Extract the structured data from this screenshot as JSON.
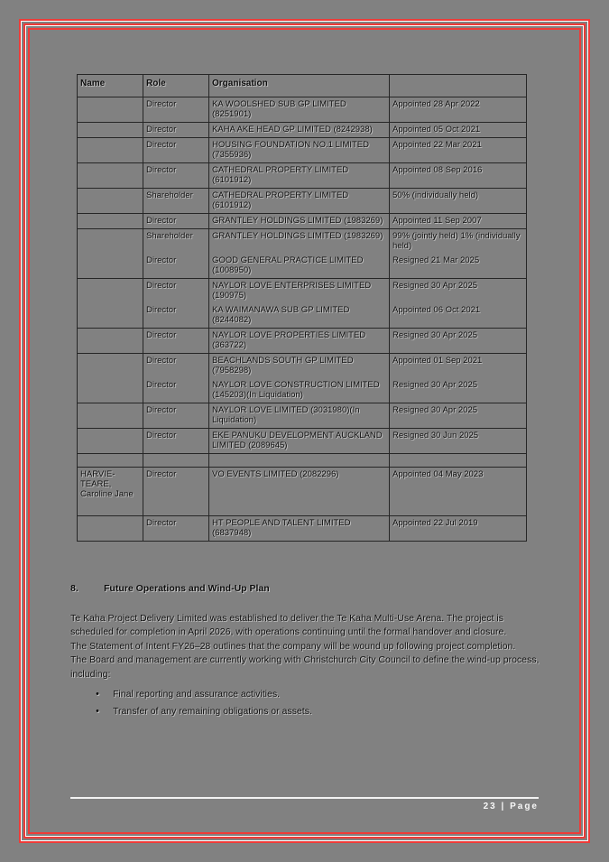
{
  "page": {
    "background_color": "#818181",
    "border_color": "#ee3b38",
    "footer": {
      "page_label": "23 | Page"
    }
  },
  "table": {
    "headers": [
      "Name",
      "Role",
      "Organisation",
      ""
    ],
    "rows": [
      {
        "name": "",
        "role": "Director",
        "organisation": "KA WOOLSHED SUB GP LIMITED (8251901)",
        "status": "Appointed 28 Apr 2022"
      },
      {
        "name": "",
        "role": "Director",
        "organisation": "KAHA AKE HEAD GP LIMITED (8242938)",
        "status": "Appointed 05 Oct 2021"
      },
      {
        "name": "",
        "role": "Director",
        "organisation": "HOUSING FOUNDATION NO.1 LIMITED (7355936)",
        "status": "Appointed 22 Mar 2021"
      },
      {
        "name": "",
        "role": "Director",
        "organisation": "CATHEDRAL PROPERTY LIMITED (6101912)",
        "status": "Appointed 08 Sep 2016"
      },
      {
        "name": "",
        "role": "Shareholder",
        "organisation": "CATHEDRAL PROPERTY LIMITED (6101912)",
        "status": "50% (individually held)"
      },
      {
        "name": "",
        "role": "Director",
        "organisation": "GRANTLEY HOLDINGS LIMITED (1983269)",
        "status": "Appointed 11 Sep 2007"
      },
      {
        "name": "",
        "role": "Shareholder",
        "organisation": "GRANTLEY HOLDINGS LIMITED (1983269)",
        "status": "99% (jointly held) 1% (individually held)"
      },
      {
        "name": "",
        "role": "Director",
        "organisation": "GOOD GENERAL PRACTICE LIMITED (1008950)",
        "status": "Resigned 21 Mar 2025",
        "joined": true
      },
      {
        "name": "",
        "role": "Director",
        "organisation": "NAYLOR LOVE ENTERPRISES LIMITED (190975)",
        "status": "Resigned 30 Apr 2025"
      },
      {
        "name": "",
        "role": "Director",
        "organisation": "KA WAIMANAWA SUB GP LIMITED (8244082)",
        "status": "Appointed 06 Oct 2021",
        "joined": true
      },
      {
        "name": "",
        "role": "Director",
        "organisation": "NAYLOR LOVE PROPERTIES LIMITED (363722)",
        "status": "Resigned 30 Apr 2025"
      },
      {
        "name": "",
        "role": "Director",
        "organisation": "BEACHLANDS SOUTH GP LIMITED (7958298)",
        "status": "Appointed 01 Sep 2021"
      },
      {
        "name": "",
        "role": "Director",
        "organisation": "NAYLOR LOVE CONSTRUCTION LIMITED (145203)(In Liquidation)",
        "status": "Resigned 30 Apr 2025",
        "joined": true
      },
      {
        "name": "",
        "role": "Director",
        "organisation": "NAYLOR LOVE LIMITED (3031980)(In Liquidation)",
        "status": "Resigned 30 Apr 2025"
      },
      {
        "name": "",
        "role": "Director",
        "organisation": "EKE PANUKU DEVELOPMENT AUCKLAND LIMITED (2089645)",
        "status": "Resigned 30 Jun 2025"
      },
      {
        "name": "",
        "role": "",
        "organisation": "",
        "status": "",
        "spacer": true
      },
      {
        "name": "HARVIE-TEARE, Caroline Jane",
        "role": "Director",
        "organisation": "VO EVENTS LIMITED (2082296)",
        "status": "Appointed 04 May 2023",
        "tall": true
      },
      {
        "name": "",
        "role": "Director",
        "organisation": "HT PEOPLE AND TALENT LIMITED (6837948)",
        "status": "Appointed 22 Jul 2019"
      }
    ]
  },
  "section": {
    "number": "8.",
    "title": "Future Operations and Wind-Up Plan",
    "paragraphs": [
      "Te Kaha Project Delivery Limited was established to deliver the Te Kaha Multi-Use Arena. The project is scheduled for completion in April 2026, with operations continuing until the formal handover and closure.",
      "The Statement of Intent FY26–28 outlines that the company will be wound up following project completion.",
      "The Board and management are currently working with Christchurch City Council to define the wind-up process, including:"
    ],
    "bullets": [
      "Final reporting and assurance activities.",
      "Transfer of any remaining obligations or assets."
    ]
  }
}
